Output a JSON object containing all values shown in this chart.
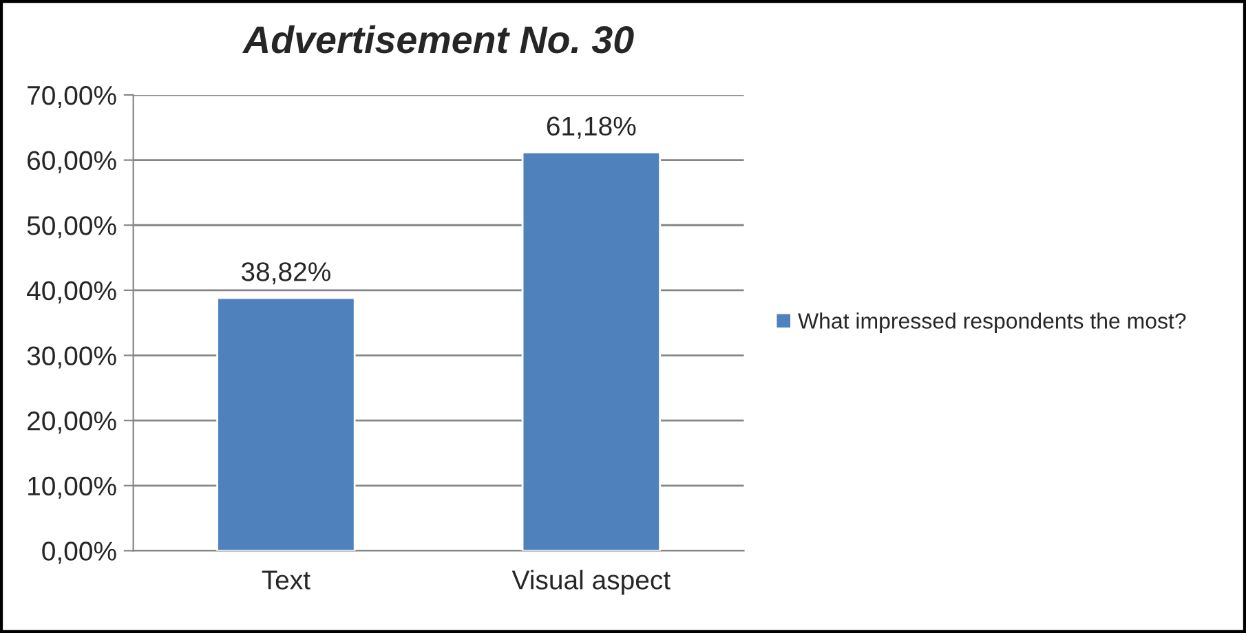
{
  "chart_data": {
    "type": "bar",
    "title": "Advertisement No. 30",
    "categories": [
      "Text",
      "Visual aspect"
    ],
    "series": [
      {
        "name": "What impressed respondents the most?",
        "color": "#4f81bd",
        "values": [
          38.82,
          61.18
        ],
        "value_labels": [
          "38,82%",
          "61,18%"
        ]
      }
    ],
    "ylim": [
      0,
      70
    ],
    "yticks": [
      {
        "value": 0,
        "label": "0,00%"
      },
      {
        "value": 10,
        "label": "10,00%"
      },
      {
        "value": 20,
        "label": "20,00%"
      },
      {
        "value": 30,
        "label": "30,00%"
      },
      {
        "value": 40,
        "label": "40,00%"
      },
      {
        "value": 50,
        "label": "50,00%"
      },
      {
        "value": 60,
        "label": "60,00%"
      },
      {
        "value": 70,
        "label": "70,00%"
      }
    ],
    "grid": "y",
    "legend": "right"
  }
}
